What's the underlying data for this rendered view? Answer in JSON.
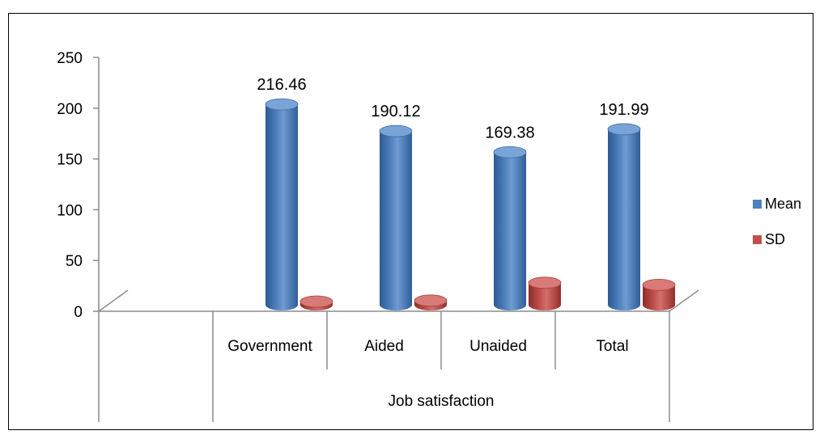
{
  "chart_data": {
    "type": "bar",
    "title": "",
    "xlabel": "",
    "ylabel": "",
    "group_label": "Job satisfaction",
    "categories": [
      "",
      "Government",
      "Aided",
      "Unaided",
      "Total"
    ],
    "series": [
      {
        "name": "Mean",
        "values": [
          null,
          216.46,
          190.12,
          169.38,
          191.99
        ],
        "color": "#4f81bd"
      },
      {
        "name": "SD",
        "values": [
          null,
          9.5,
          10.5,
          28.0,
          26.0
        ],
        "color": "#c0504d"
      }
    ],
    "data_labels": [
      "",
      "216.46",
      "190.12",
      "169.38",
      "191.99"
    ],
    "ylim": [
      0,
      250
    ],
    "yticks": [
      "0",
      "50",
      "100",
      "150",
      "200",
      "250"
    ],
    "grid": false,
    "legend_position": "right",
    "bar_style": "3d-cylinder"
  }
}
